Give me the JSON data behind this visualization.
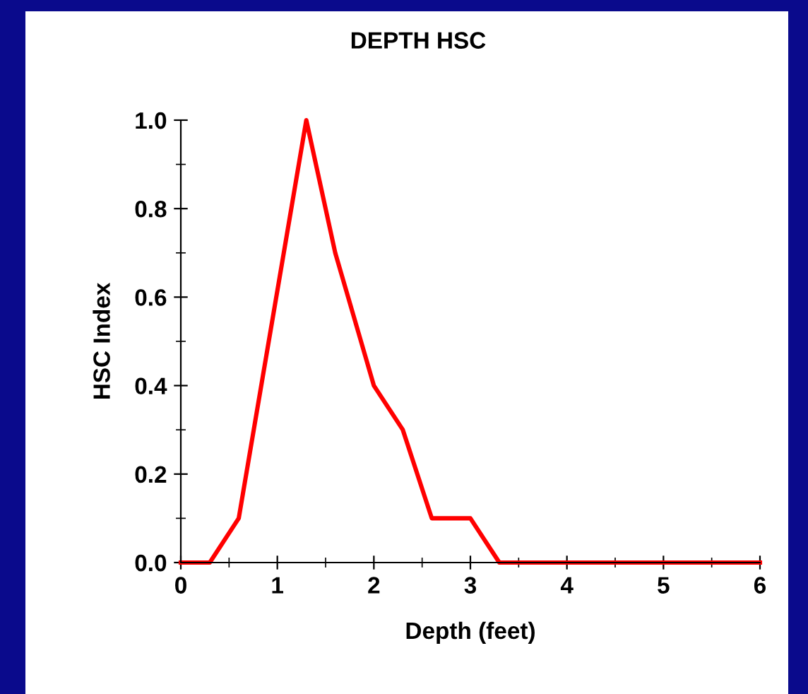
{
  "chart_data": {
    "type": "line",
    "title": "DEPTH HSC",
    "xlabel": "Depth (feet)",
    "ylabel": "HSC Index",
    "x": [
      0,
      0.3,
      0.6,
      1.3,
      1.6,
      2.0,
      2.3,
      2.6,
      3.0,
      3.3,
      6
    ],
    "series": [
      {
        "color": "#ff0000",
        "values": [
          0,
          0,
          0.1,
          1.0,
          0.7,
          0.4,
          0.3,
          0.1,
          0.1,
          0,
          0
        ]
      }
    ],
    "xlim": [
      0,
      6
    ],
    "xticks": [
      0,
      1,
      2,
      3,
      4,
      5,
      6
    ],
    "ylim": [
      0,
      1.0
    ],
    "yticks": [
      {
        "value": 0,
        "label": "0.0"
      },
      {
        "value": 0.2,
        "label": "0.2"
      },
      {
        "value": 0.4,
        "label": "0.4"
      },
      {
        "value": 0.6,
        "label": "0.6"
      },
      {
        "value": 0.8,
        "label": "0.8"
      },
      {
        "value": 1.0,
        "label": "1.0"
      }
    ],
    "grid": false,
    "legend": false,
    "marker": "none",
    "line_style": "solid"
  }
}
